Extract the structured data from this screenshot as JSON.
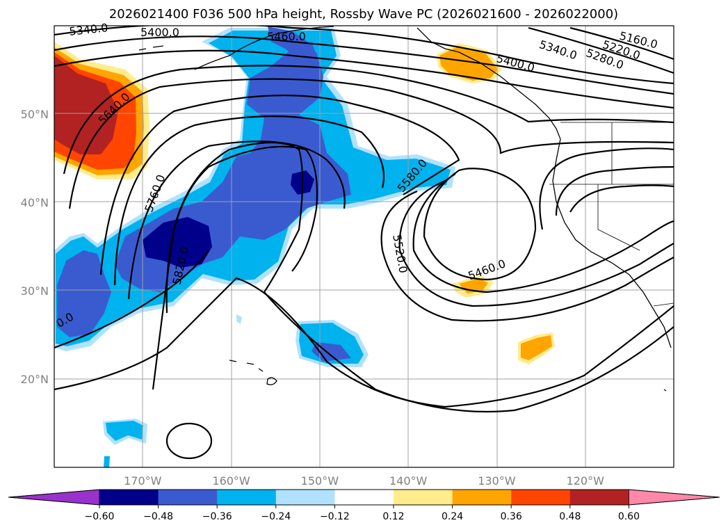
{
  "title": "2026021400 F036 500 hPa height, Rossby Wave PC (2026021600 - 2026022000)",
  "map": {
    "lon_range": [
      -180,
      -110
    ],
    "lat_range": [
      10,
      60
    ],
    "lat_ticks": [
      {
        "value": 20,
        "label": "20°N"
      },
      {
        "value": 30,
        "label": "30°N"
      },
      {
        "value": 40,
        "label": "40°N"
      },
      {
        "value": 50,
        "label": "50°N"
      }
    ],
    "lon_ticks": [
      {
        "value": -170,
        "label": "170°W"
      },
      {
        "value": -160,
        "label": "160°W"
      },
      {
        "value": -150,
        "label": "150°W"
      },
      {
        "value": -140,
        "label": "140°W"
      },
      {
        "value": -130,
        "label": "130°W"
      },
      {
        "value": -120,
        "label": "120°W"
      }
    ],
    "gridlines": true
  },
  "contour_labels": [
    {
      "text": "5340.0"
    },
    {
      "text": "5400.0"
    },
    {
      "text": "5460.0"
    },
    {
      "text": "5640.0"
    },
    {
      "text": "5760.0"
    },
    {
      "text": "5820.0"
    },
    {
      "text": "5580.0"
    },
    {
      "text": "5520.0"
    },
    {
      "text": "5460.0"
    },
    {
      "text": "5400.0"
    },
    {
      "text": "5340.0"
    },
    {
      "text": "5280.0"
    },
    {
      "text": "5220.0"
    },
    {
      "text": "5160.0"
    },
    {
      "text": "0.0"
    }
  ],
  "colorbar": {
    "extend": "both",
    "colors": [
      "#9932cc",
      "#00008b",
      "#3a5bcf",
      "#00b2ee",
      "#b0e2ff",
      "#ffffff",
      "#ffec8b",
      "#ffa500",
      "#ff4500",
      "#b22222",
      "#ff88aa"
    ],
    "tick_labels": [
      "−0.60",
      "−0.48",
      "−0.36",
      "−0.24",
      "−0.12",
      "0.12",
      "0.24",
      "0.36",
      "0.48",
      "0.60"
    ]
  }
}
